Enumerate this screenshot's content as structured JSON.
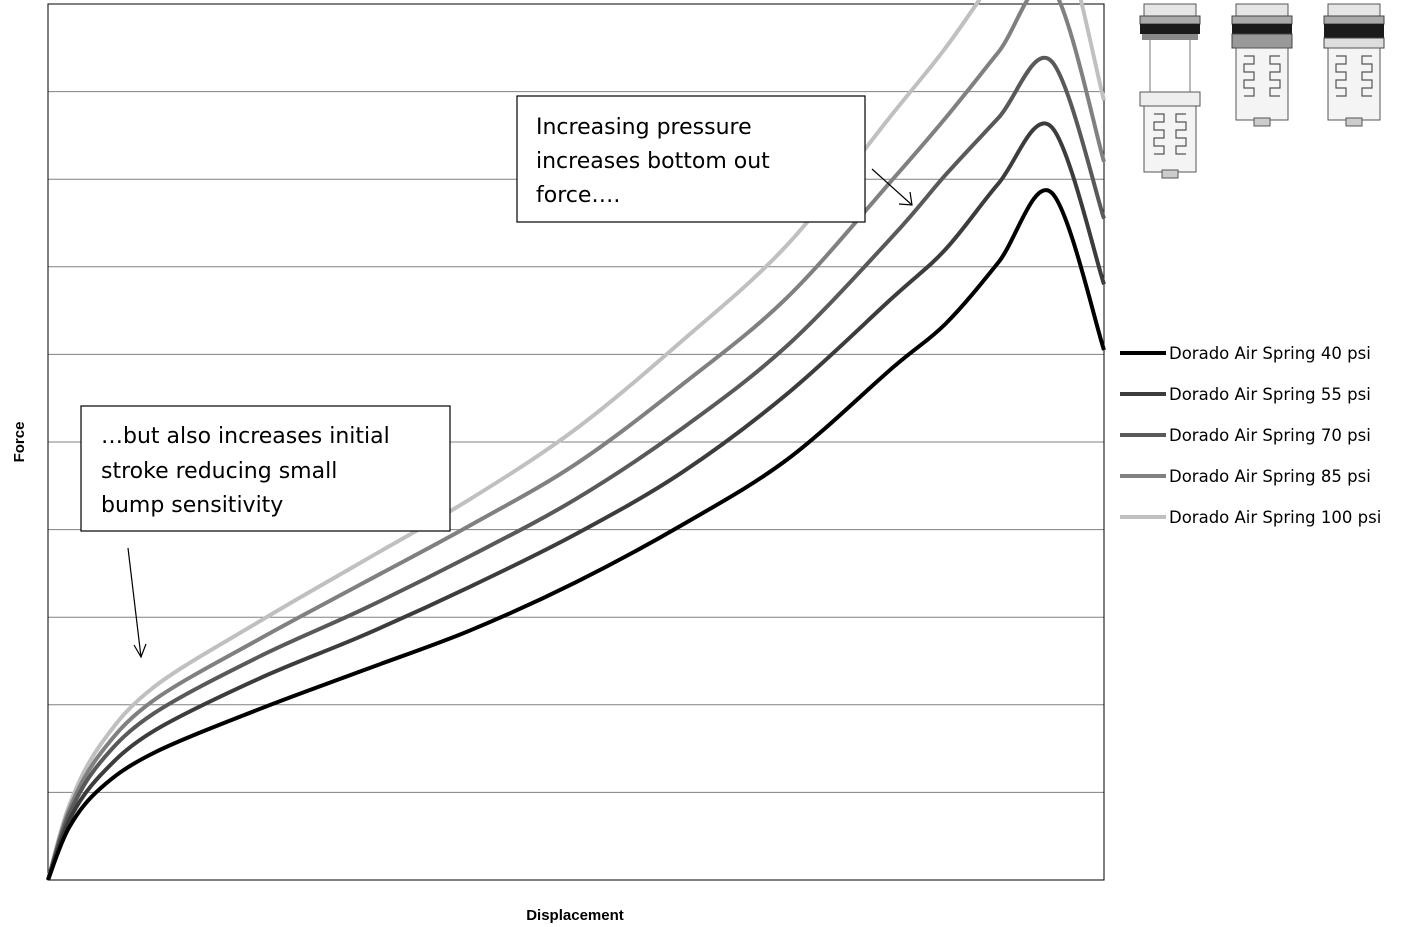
{
  "chart_data": {
    "type": "line",
    "title": "",
    "xlabel": "Displacement",
    "ylabel": "Force",
    "xlim": [
      0,
      1
    ],
    "ylim": [
      0,
      10
    ],
    "grid": true,
    "tick_labels_shown": false,
    "legend_position": "right",
    "x": [
      0,
      0.02,
      0.05,
      0.1,
      0.2,
      0.3,
      0.4,
      0.5,
      0.6,
      0.7,
      0.8,
      0.85,
      0.9,
      0.95,
      1.0
    ],
    "series": [
      {
        "name": "Dorado Air Spring 40 psi",
        "color": "#000000",
        "values": [
          0,
          0.6,
          1.05,
          1.45,
          1.95,
          2.4,
          2.85,
          3.4,
          4.05,
          4.8,
          5.85,
          6.35,
          7.05,
          7.85,
          6.05
        ]
      },
      {
        "name": "Dorado Air Spring 55 psi",
        "color": "#3c3c3c",
        "values": [
          0,
          0.68,
          1.2,
          1.7,
          2.3,
          2.8,
          3.35,
          3.95,
          4.65,
          5.55,
          6.65,
          7.2,
          7.95,
          8.6,
          6.8
        ]
      },
      {
        "name": "Dorado Air Spring 70 psi",
        "color": "#595959",
        "values": [
          0,
          0.75,
          1.35,
          1.9,
          2.55,
          3.1,
          3.7,
          4.35,
          5.15,
          6.1,
          7.35,
          8.05,
          8.7,
          9.35,
          7.55
        ]
      },
      {
        "name": "Dorado Air Spring 85 psi",
        "color": "#808080",
        "values": [
          0,
          0.8,
          1.45,
          2.05,
          2.75,
          3.4,
          4.05,
          4.75,
          5.65,
          6.65,
          8.0,
          8.7,
          9.45,
          10.2,
          8.2
        ]
      },
      {
        "name": "Dorado Air Spring 100 psi",
        "color": "#c0c0c0",
        "values": [
          0,
          0.85,
          1.55,
          2.2,
          2.95,
          3.65,
          4.35,
          5.15,
          6.15,
          7.25,
          8.75,
          9.5,
          10.35,
          11.1,
          8.9
        ]
      }
    ],
    "annotations": [
      {
        "lines": [
          "Increasing pressure",
          "increases bottom out",
          "force…."
        ]
      },
      {
        "lines": [
          "…but also increases initial",
          "stroke reducing small",
          "bump sensitivity"
        ]
      }
    ]
  },
  "images": {
    "product_illustrations": [
      "air-spring-cutaway-1",
      "air-spring-cutaway-2",
      "air-spring-cutaway-3"
    ]
  }
}
